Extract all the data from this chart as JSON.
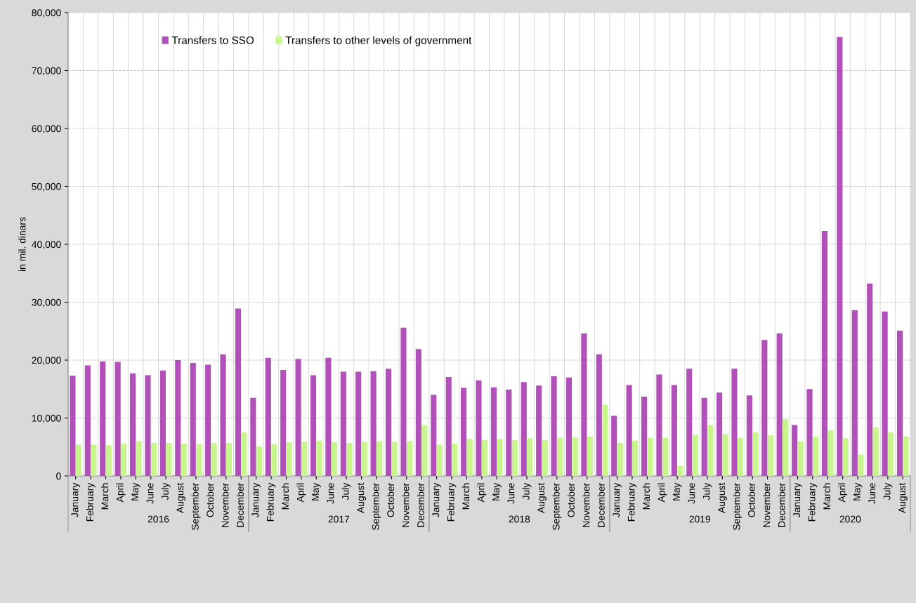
{
  "chart_data": {
    "type": "bar",
    "ylabel": "in mil. dinars",
    "categories": [
      "January",
      "February",
      "March",
      "April",
      "May",
      "June",
      "July",
      "August",
      "September",
      "October",
      "November",
      "December",
      "January",
      "February",
      "March",
      "April",
      "May",
      "June",
      "July",
      "August",
      "September",
      "October",
      "November",
      "December",
      "January",
      "February",
      "March",
      "April",
      "May",
      "June",
      "July",
      "August",
      "September",
      "October",
      "November",
      "December",
      "January",
      "February",
      "March",
      "April",
      "May",
      "June",
      "July",
      "August",
      "September",
      "October",
      "November",
      "December",
      "January",
      "February",
      "March",
      "April",
      "May",
      "June",
      "July",
      "August"
    ],
    "series": [
      {
        "name": "Transfers to SSO",
        "color": "#b050b8",
        "values": [
          17300,
          19100,
          19800,
          19700,
          17700,
          17400,
          18200,
          20000,
          19500,
          19200,
          21000,
          28900,
          13500,
          20400,
          18300,
          20200,
          17400,
          20400,
          18000,
          18000,
          18100,
          18500,
          25600,
          21900,
          14000,
          17100,
          15200,
          16500,
          15300,
          14900,
          16200,
          15600,
          17200,
          17000,
          24600,
          21000,
          10400,
          15700,
          13700,
          17500,
          15700,
          18500,
          13500,
          14400,
          18500,
          13900,
          23500,
          24600,
          8800,
          15000,
          42300,
          75800,
          28600,
          33200,
          28400,
          25100
        ]
      },
      {
        "name": "Transfers to other levels of government",
        "color": "#c8f58c",
        "values": [
          5400,
          5400,
          5300,
          5600,
          6000,
          5700,
          5700,
          5600,
          5500,
          5700,
          5700,
          7500,
          5100,
          5500,
          5800,
          5900,
          6100,
          5800,
          5700,
          5900,
          6000,
          5900,
          6000,
          8800,
          5400,
          5600,
          6400,
          6200,
          6400,
          6200,
          6500,
          6200,
          6600,
          6700,
          6800,
          12300,
          5700,
          6100,
          6600,
          6600,
          1700,
          7100,
          8800,
          7200,
          6600,
          7500,
          7000,
          9800,
          6000,
          6800,
          7900,
          6500,
          3700,
          8400,
          7500,
          6800
        ]
      }
    ],
    "annotations": [
      "2016",
      "2017",
      "2018",
      "2019",
      "2020"
    ],
    "ylim": [
      0,
      80000
    ],
    "yticks": [
      {
        "value": 0,
        "label": "0"
      },
      {
        "value": 10000,
        "label": "10,000"
      },
      {
        "value": 20000,
        "label": "20,000"
      },
      {
        "value": 30000,
        "label": "30,000"
      },
      {
        "value": 40000,
        "label": "40,000"
      },
      {
        "value": 50000,
        "label": "50,000"
      },
      {
        "value": 60000,
        "label": "60,000"
      },
      {
        "value": 70000,
        "label": "70,000"
      },
      {
        "value": 80000,
        "label": "80,000"
      }
    ],
    "grid": "y",
    "legend": "top left"
  }
}
